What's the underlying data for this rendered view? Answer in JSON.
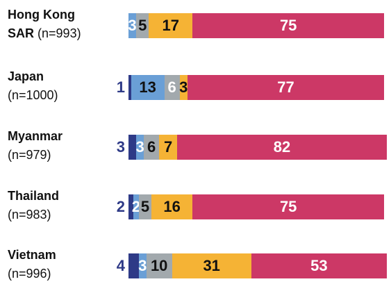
{
  "chart_data": {
    "type": "stacked-bar-horizontal",
    "categories": [
      "Hong Kong SAR",
      "Japan",
      "Myanmar",
      "Thailand",
      "Vietnam"
    ],
    "category_notes": [
      "(n=993)",
      "(n=1000)",
      "(n=979)",
      "(n=983)",
      "(n=996)"
    ],
    "xlim": [
      0,
      101
    ],
    "series": [
      {
        "color": "#2e3a87",
        "values": [
          0,
          1,
          3,
          2,
          4
        ],
        "value_labels": [
          null,
          "1",
          "3",
          "2",
          "4"
        ],
        "label_colors": [
          "#2e3a87",
          "#2e3a87",
          "#2e3a87",
          "#2e3a87",
          "#2e3a87"
        ],
        "label_outside": true
      },
      {
        "color": "#6a9fd6",
        "values": [
          3,
          13,
          3,
          2,
          3
        ],
        "label_colors": [
          "#ffffff",
          "#111111",
          "#ffffff",
          "#ffffff",
          "#ffffff"
        ]
      },
      {
        "color": "#a2a9ad",
        "values": [
          5,
          6,
          6,
          5,
          10
        ],
        "label_colors": [
          "#111111",
          "#ffffff",
          "#111111",
          "#111111",
          "#111111"
        ]
      },
      {
        "color": "#f5b335",
        "values": [
          17,
          3,
          7,
          16,
          31
        ],
        "label_colors": [
          "#111111",
          "#111111",
          "#111111",
          "#111111",
          "#111111"
        ]
      },
      {
        "color": "#cc3866",
        "values": [
          75,
          77,
          82,
          75,
          53
        ],
        "label_colors": [
          "#ffffff",
          "#ffffff",
          "#ffffff",
          "#ffffff",
          "#ffffff"
        ]
      }
    ]
  }
}
